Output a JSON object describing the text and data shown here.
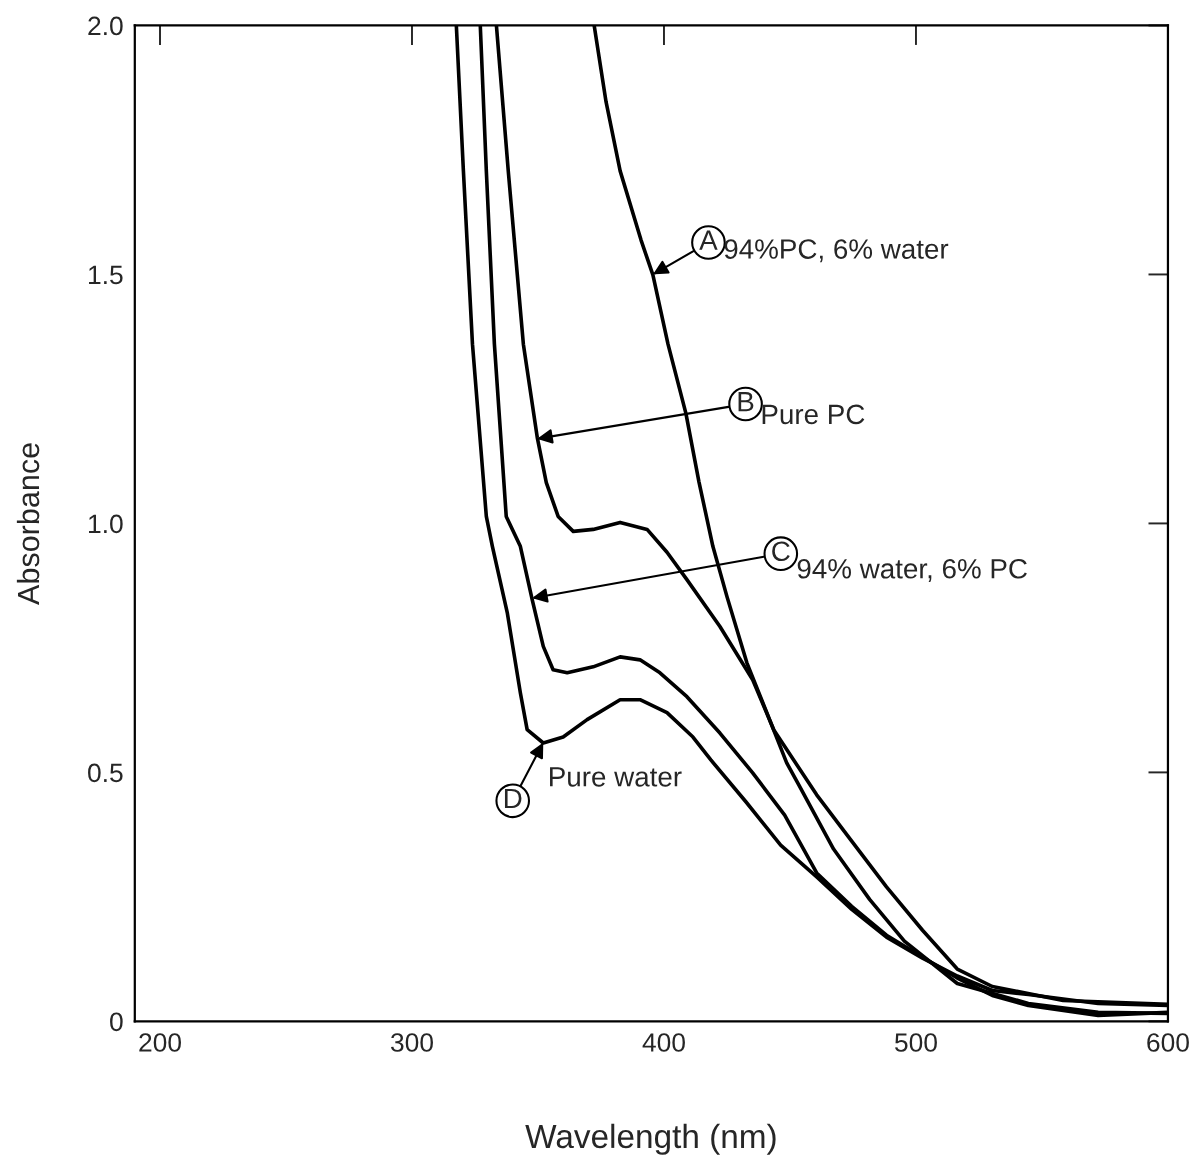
{
  "chart_data": {
    "type": "line",
    "xlabel": "Wavelength (nm)",
    "ylabel": "Absorbance",
    "xlim": [
      190,
      600
    ],
    "ylim": [
      0,
      2.0
    ],
    "xticks": [
      200,
      300,
      400,
      500,
      600
    ],
    "yticks": [
      0,
      0.5,
      {
        "value": 1,
        "label": "1.0"
      },
      1.5,
      {
        "value": 2,
        "label": "2.0"
      }
    ],
    "grid": false,
    "legend": false,
    "marker": "none",
    "line_style": "solid",
    "series": [
      {
        "color": "#000000",
        "x": [
          372.3,
          377.0,
          382.6,
          390.9,
          395.6,
          401.6,
          408.7,
          413.9,
          419.4,
          425.0,
          432.9,
          440.8,
          448.7,
          453.5,
          467.3,
          481.6,
          495.4,
          516.4,
          544.6,
          572.3,
          600
        ],
        "values": [
          2.0,
          1.847,
          1.708,
          1.569,
          1.499,
          1.36,
          1.221,
          1.083,
          0.954,
          0.853,
          0.72,
          0.62,
          0.519,
          0.475,
          0.346,
          0.245,
          0.161,
          0.076,
          0.036,
          0.018,
          0.016
        ]
      },
      {
        "color": "#000000",
        "x": [
          333.5,
          338.2,
          344.2,
          349.7,
          353.3,
          358.0,
          364.0,
          371.9,
          382.6,
          393.3,
          401.2,
          409.1,
          422.2,
          435.2,
          443.6,
          460.6,
          474.5,
          488.3,
          502.6,
          516.4,
          530.3,
          558.4,
          600
        ],
        "values": [
          2.0,
          1.708,
          1.36,
          1.173,
          1.082,
          1.014,
          0.984,
          0.988,
          1.002,
          0.988,
          0.942,
          0.887,
          0.793,
          0.686,
          0.585,
          0.455,
          0.362,
          0.27,
          0.183,
          0.105,
          0.07,
          0.042,
          0.034
        ]
      },
      {
        "color": "#000000",
        "x": [
          327.1,
          329.5,
          332.7,
          337.4,
          343.0,
          347.7,
          352.1,
          356.0,
          361.6,
          371.9,
          382.6,
          390.5,
          398.4,
          409.1,
          422.2,
          435.2,
          447.9,
          460.6,
          474.5,
          488.3,
          502.6,
          516.4,
          530.3,
          544.6,
          572.3,
          600
        ],
        "values": [
          2.0,
          1.708,
          1.36,
          1.014,
          0.954,
          0.847,
          0.753,
          0.706,
          0.7,
          0.712,
          0.732,
          0.726,
          0.7,
          0.652,
          0.579,
          0.499,
          0.414,
          0.298,
          0.231,
          0.173,
          0.129,
          0.087,
          0.052,
          0.032,
          0.012,
          0.018
        ]
      },
      {
        "color": "#000000",
        "x": [
          317.6,
          320.4,
          324.0,
          329.5,
          331.9,
          337.8,
          343.0,
          345.7,
          352.1,
          360.0,
          369.5,
          382.6,
          390.5,
          401.2,
          411.5,
          418.6,
          432.5,
          446.3,
          460.6,
          474.5,
          488.3,
          502.6,
          516.4,
          530.3,
          544.6,
          572.3,
          600
        ],
        "values": [
          2.0,
          1.708,
          1.36,
          1.014,
          0.954,
          0.821,
          0.66,
          0.586,
          0.559,
          0.571,
          0.606,
          0.646,
          0.646,
          0.62,
          0.571,
          0.525,
          0.441,
          0.354,
          0.29,
          0.225,
          0.169,
          0.127,
          0.091,
          0.062,
          0.054,
          0.036,
          0.032
        ]
      }
    ],
    "annotations": [
      {
        "text": "A",
        "x": 395.6,
        "y": 1.5
      },
      {
        "text": "B",
        "x": 349.7,
        "y": 1.17
      },
      {
        "text": "C",
        "x": 347.7,
        "y": 0.85
      },
      {
        "text": "D",
        "x": 352.1,
        "y": 0.56
      },
      "94%PC, 6% water",
      "Pure PC",
      "94% water, 6% PC",
      "Pure water"
    ]
  }
}
